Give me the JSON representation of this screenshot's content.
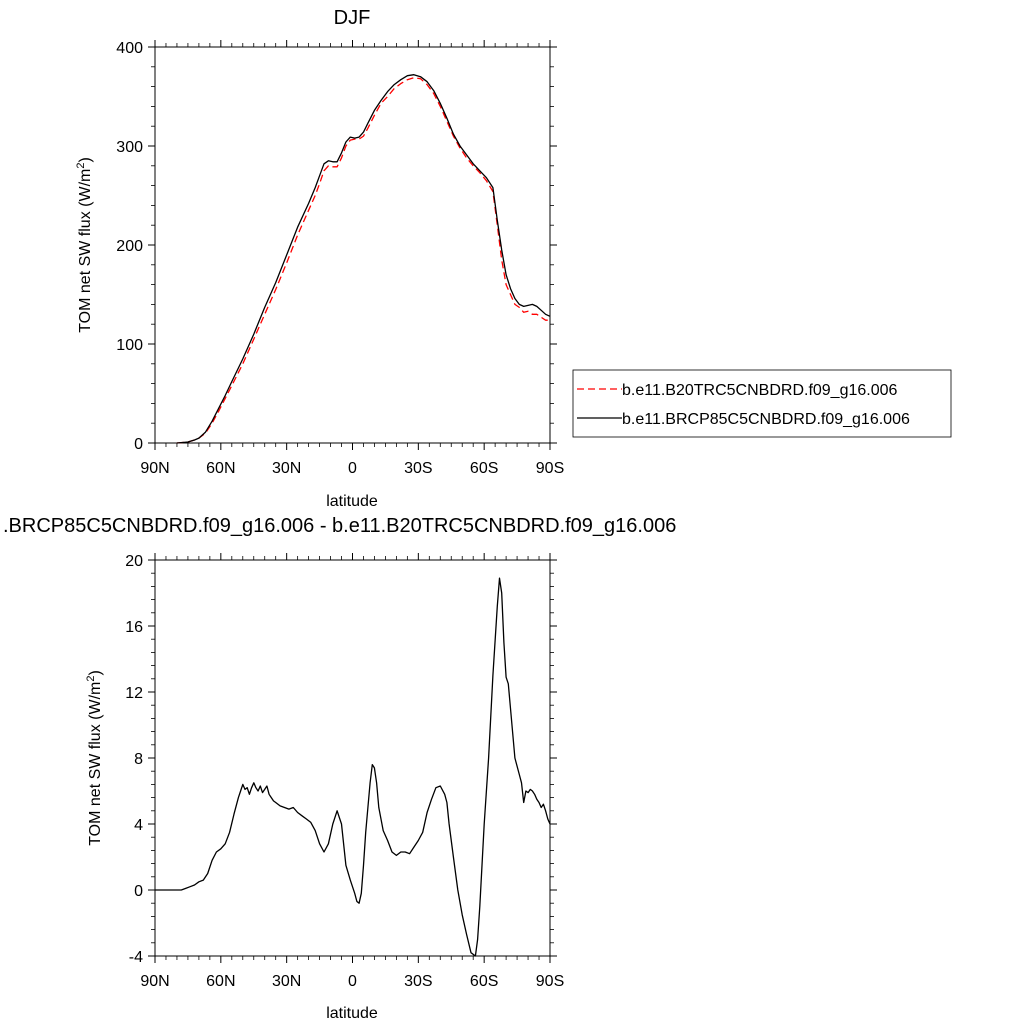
{
  "chart_data": [
    {
      "type": "line",
      "title": "DJF",
      "xlabel": "latitude",
      "ylabel_main": "TOM net SW flux (W/m",
      "ylabel_sup": "2",
      "ylabel_end": ")",
      "xlim": [
        90,
        -90
      ],
      "ylim": [
        0,
        400
      ],
      "x_ticks": [
        90,
        60,
        30,
        0,
        -30,
        -60,
        -90
      ],
      "x_tick_labels": [
        "90N",
        "60N",
        "30N",
        "0",
        "30S",
        "60S",
        "90S"
      ],
      "y_ticks": [
        0,
        100,
        200,
        300,
        400
      ],
      "y_tick_labels": [
        "0",
        "100",
        "200",
        "300",
        "400"
      ],
      "legend_position": "right",
      "series": [
        {
          "name": "b.e11.B20TRC5CNBDRD.f09_g16.006",
          "color": "#ff0000",
          "dash": "dashed",
          "x": [
            80,
            75,
            72,
            70,
            67,
            64,
            61,
            58,
            55,
            50,
            45,
            40,
            35,
            30,
            25,
            20,
            17,
            15,
            13,
            11,
            9,
            7,
            5,
            3,
            1,
            -1,
            -3,
            -5,
            -7,
            -10,
            -13,
            -16,
            -19,
            -22,
            -25,
            -28,
            -31,
            -34,
            -37,
            -40,
            -43,
            -46,
            -49,
            -52,
            -55,
            -58,
            -61,
            -64,
            -66,
            -68,
            -70,
            -72,
            -74,
            -76,
            -78,
            -80,
            -82,
            -84,
            -86,
            -88,
            -90
          ],
          "y": [
            0,
            1,
            3,
            5,
            10,
            20,
            32,
            45,
            58,
            80,
            105,
            130,
            155,
            182,
            210,
            235,
            250,
            262,
            275,
            280,
            279,
            279,
            288,
            300,
            306,
            307,
            307,
            310,
            318,
            331,
            343,
            350,
            358,
            363,
            367,
            369,
            368,
            362,
            353,
            340,
            325,
            310,
            298,
            288,
            280,
            273,
            265,
            254,
            220,
            185,
            160,
            150,
            140,
            137,
            132,
            133,
            130,
            130,
            127,
            124,
            124
          ]
        },
        {
          "name": "b.e11.BRCP85C5CNBDRD.f09_g16.006",
          "color": "#000000",
          "dash": "solid",
          "x": [
            80,
            75,
            72,
            70,
            67,
            64,
            61,
            58,
            55,
            50,
            45,
            40,
            35,
            30,
            25,
            20,
            17,
            15,
            13,
            11,
            9,
            7,
            5,
            3,
            1,
            -1,
            -3,
            -5,
            -7,
            -10,
            -13,
            -16,
            -19,
            -22,
            -25,
            -28,
            -31,
            -34,
            -37,
            -40,
            -43,
            -46,
            -49,
            -52,
            -55,
            -58,
            -61,
            -64,
            -66,
            -68,
            -70,
            -72,
            -74,
            -76,
            -78,
            -80,
            -82,
            -84,
            -86,
            -88,
            -90
          ],
          "y": [
            0,
            1,
            3,
            5,
            11,
            22,
            35,
            48,
            62,
            85,
            110,
            137,
            162,
            190,
            218,
            242,
            258,
            270,
            282,
            285,
            284,
            284,
            293,
            304,
            309,
            308,
            309,
            314,
            323,
            336,
            346,
            355,
            362,
            367,
            371,
            372,
            370,
            365,
            356,
            343,
            328,
            312,
            300,
            291,
            282,
            275,
            268,
            258,
            225,
            195,
            170,
            156,
            146,
            140,
            138,
            139,
            140,
            138,
            134,
            130,
            128
          ]
        }
      ]
    },
    {
      "type": "line",
      "title": ".BRCP85C5CNBDRD.f09_g16.006 - b.e11.B20TRC5CNBDRD.f09_g16.006",
      "xlabel": "latitude",
      "ylabel_main": "TOM net SW flux (W/m",
      "ylabel_sup": "2",
      "ylabel_end": ")",
      "xlim": [
        90,
        -90
      ],
      "ylim": [
        -4,
        20
      ],
      "x_ticks": [
        90,
        60,
        30,
        0,
        -30,
        -60,
        -90
      ],
      "x_tick_labels": [
        "90N",
        "60N",
        "30N",
        "0",
        "30S",
        "60S",
        "90S"
      ],
      "y_ticks": [
        -4,
        0,
        4,
        8,
        12,
        16,
        20
      ],
      "y_tick_labels": [
        "-4",
        "0",
        "4",
        "8",
        "12",
        "16",
        "20"
      ],
      "series": [
        {
          "color": "#000000",
          "x": [
            90,
            85,
            82,
            80,
            78,
            76,
            74,
            72,
            70,
            68,
            66,
            64,
            62,
            60,
            58,
            56,
            54,
            52,
            51,
            50,
            49,
            48,
            47,
            46,
            45,
            44,
            43,
            42,
            41,
            40,
            39,
            38,
            37,
            36,
            35,
            33,
            31,
            29,
            27,
            25,
            23,
            21,
            19,
            17,
            15,
            13,
            11,
            9,
            7,
            5,
            3,
            1,
            0,
            -1,
            -2,
            -3,
            -4,
            -5,
            -6,
            -7,
            -8,
            -9,
            -10,
            -11,
            -12,
            -14,
            -16,
            -18,
            -20,
            -22,
            -24,
            -26,
            -28,
            -30,
            -32,
            -34,
            -36,
            -38,
            -40,
            -42,
            -43,
            -44,
            -46,
            -48,
            -50,
            -52,
            -54,
            -56,
            -57,
            -58,
            -59,
            -60,
            -62,
            -64,
            -66,
            -67,
            -68,
            -69,
            -70,
            -71,
            -72,
            -74,
            -76,
            -77,
            -78,
            -79,
            -80,
            -81,
            -82,
            -83,
            -84,
            -85,
            -86,
            -87,
            -88,
            -89,
            -90
          ],
          "y": [
            0,
            0,
            0,
            0,
            0,
            0.1,
            0.2,
            0.3,
            0.5,
            0.6,
            1.0,
            1.8,
            2.3,
            2.5,
            2.8,
            3.5,
            4.6,
            5.6,
            6.0,
            6.4,
            6.1,
            6.2,
            5.8,
            6.2,
            6.5,
            6.2,
            6.0,
            6.3,
            5.9,
            6.1,
            6.3,
            5.8,
            5.6,
            5.4,
            5.3,
            5.1,
            5.0,
            4.9,
            5.0,
            4.7,
            4.5,
            4.3,
            4.1,
            3.6,
            2.8,
            2.3,
            2.8,
            4.0,
            4.8,
            4.0,
            1.5,
            0.6,
            0.2,
            -0.2,
            -0.7,
            -0.8,
            -0.2,
            1.5,
            3.5,
            5.0,
            6.5,
            7.6,
            7.4,
            6.5,
            5.0,
            3.6,
            3.0,
            2.3,
            2.1,
            2.3,
            2.3,
            2.2,
            2.6,
            3.0,
            3.5,
            4.7,
            5.5,
            6.2,
            6.3,
            5.8,
            5.3,
            4.0,
            2.0,
            0.0,
            -1.5,
            -2.7,
            -3.8,
            -4.0,
            -3.0,
            -1.0,
            1.5,
            4.0,
            8.0,
            13.0,
            17.2,
            18.9,
            18.0,
            15.0,
            12.9,
            12.5,
            11.0,
            8.0,
            7.0,
            6.5,
            5.3,
            6.0,
            5.9,
            6.1,
            6.0,
            5.8,
            5.5,
            5.3,
            5.0,
            5.2,
            4.8,
            4.3,
            4.0
          ]
        }
      ]
    }
  ]
}
